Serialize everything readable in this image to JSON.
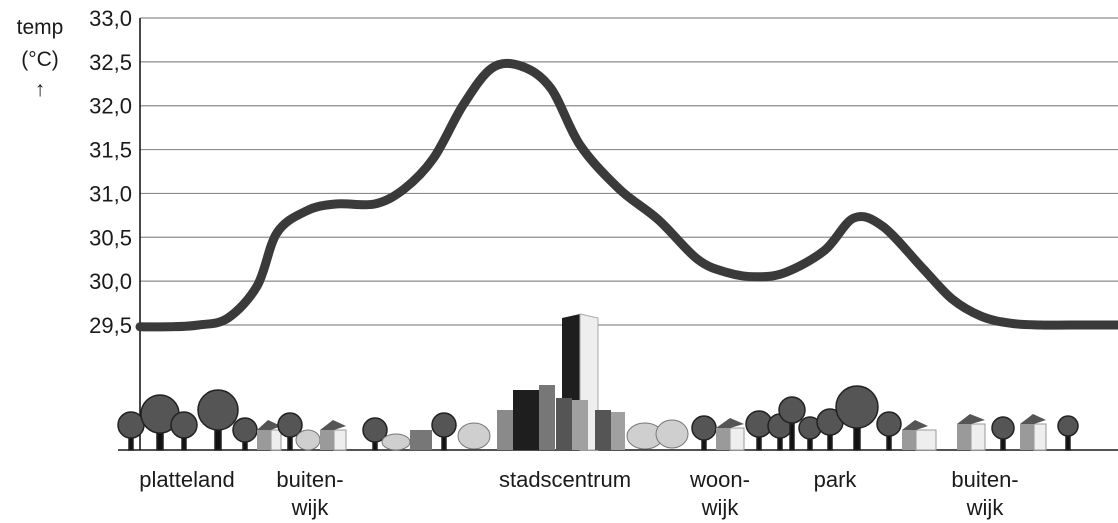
{
  "chart_data": {
    "type": "line",
    "ylabel_line1": "temp",
    "ylabel_line2": "(°C)",
    "ylabel_arrow": "↑",
    "ylim": [
      29.5,
      33.0
    ],
    "yticks": [
      "29,5",
      "30,0",
      "30,5",
      "31,0",
      "31,5",
      "32,0",
      "32,5",
      "33,0"
    ],
    "grid": true,
    "x": [
      0,
      3,
      6,
      9,
      12,
      14,
      17,
      20,
      24,
      27,
      30,
      33,
      36,
      39,
      42,
      45,
      49,
      53,
      57,
      60,
      63,
      66,
      70,
      73,
      76,
      80,
      83,
      86,
      89,
      92,
      95,
      98,
      100
    ],
    "y": [
      29.48,
      29.48,
      29.5,
      29.58,
      29.95,
      30.55,
      30.8,
      30.88,
      30.88,
      31.05,
      31.4,
      32.0,
      32.43,
      32.45,
      32.2,
      31.55,
      31.05,
      30.7,
      30.25,
      30.1,
      30.05,
      30.1,
      30.35,
      30.72,
      30.62,
      30.15,
      29.8,
      29.6,
      29.52,
      29.5,
      29.5,
      29.5,
      29.5
    ],
    "series": [
      {
        "values_ref": "y"
      }
    ],
    "categories": [
      {
        "line1": "platteland",
        "line2": ""
      },
      {
        "line1": "buiten-",
        "line2": "wijk"
      },
      {
        "line1": "stadscentrum",
        "line2": ""
      },
      {
        "line1": "woon-",
        "line2": "wijk"
      },
      {
        "line1": "park",
        "line2": ""
      },
      {
        "line1": "buiten-",
        "line2": "wijk"
      }
    ],
    "colors": {
      "curve": "#3a3a3a",
      "tree": "#555555",
      "building_dark": "#1e1e1e",
      "building_mid": "#8a8a8a",
      "building_light": "#e8e8e8",
      "shrub": "#c8c8c8"
    }
  }
}
